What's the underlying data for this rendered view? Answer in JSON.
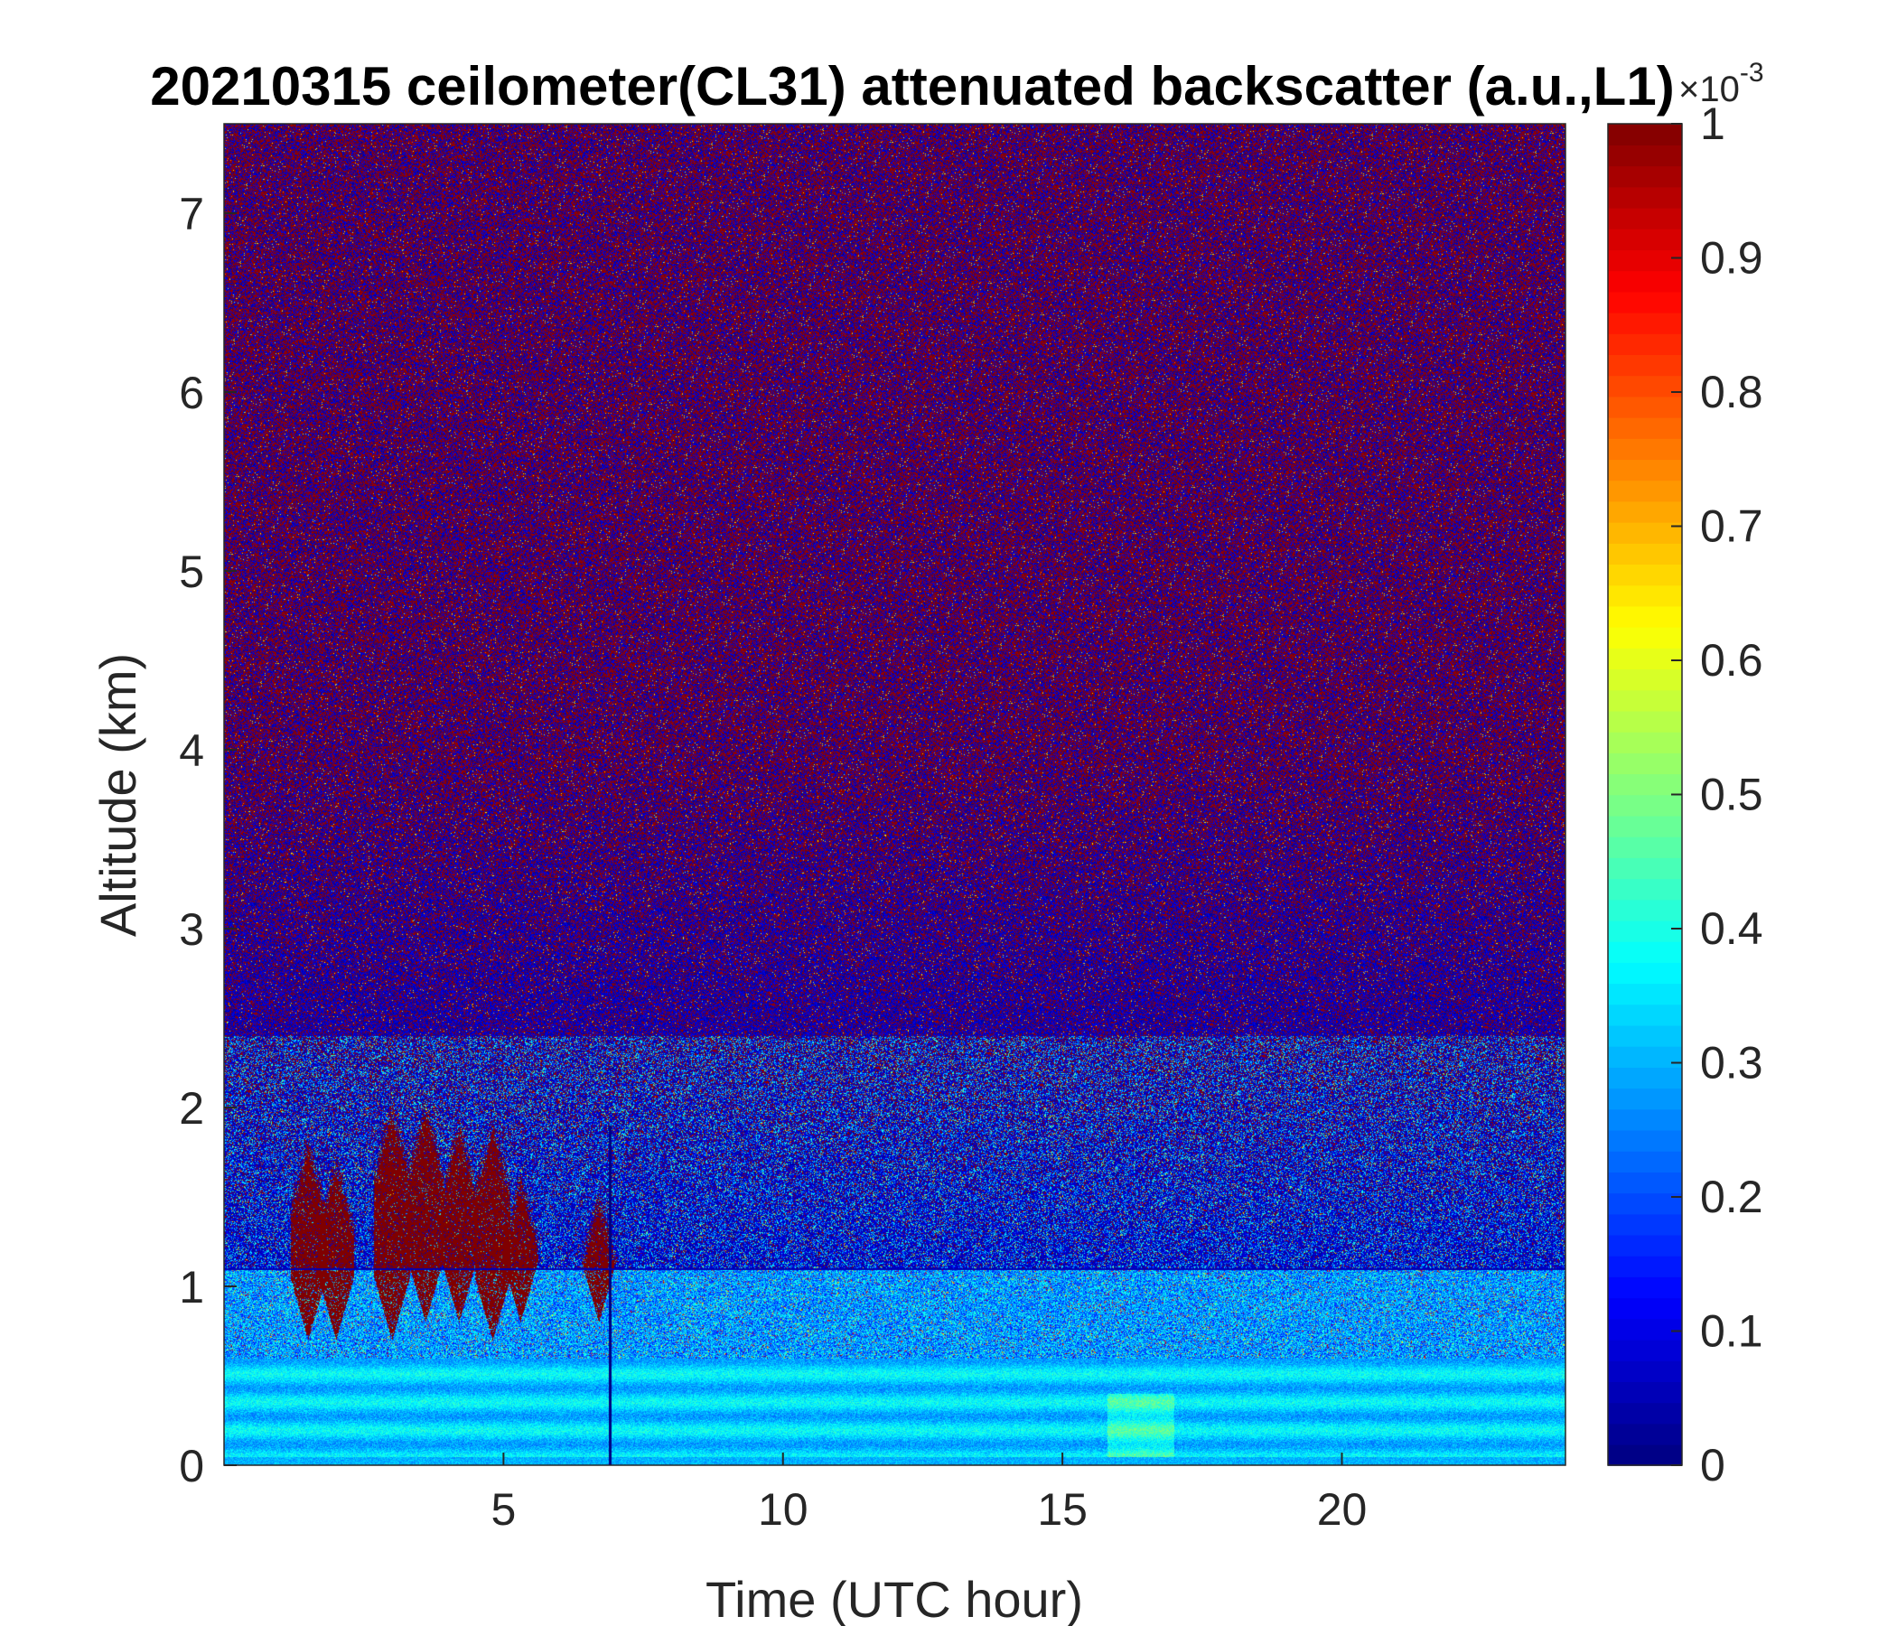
{
  "chart_data": {
    "type": "heatmap",
    "title": "20210315 ceilometer(CL31) attenuated backscatter (a.u.,L1)",
    "xlabel": "Time (UTC hour)",
    "ylabel": "Altitude (km)",
    "xlim": [
      0,
      24
    ],
    "ylim": [
      0,
      7.5
    ],
    "xticks": [
      5,
      10,
      15,
      20
    ],
    "yticks": [
      0,
      1,
      2,
      3,
      4,
      5,
      6,
      7
    ],
    "colorbar": {
      "colormap": "jet",
      "range": [
        0,
        1
      ],
      "ticks": [
        0,
        0.1,
        0.2,
        0.3,
        0.4,
        0.5,
        0.6,
        0.7,
        0.8,
        0.9,
        1
      ],
      "exponent_label": "×10",
      "exponent_power": "-3"
    },
    "features": {
      "near_surface_layer": {
        "altitude_km": [
          0,
          0.6
        ],
        "level": 0.33
      },
      "boundary_layer_top_line_km": 1.1,
      "cloud_cells": [
        {
          "x_hour": 1.5,
          "base_km": 0.7,
          "top_km": 1.8
        },
        {
          "x_hour": 2.0,
          "base_km": 0.7,
          "top_km": 1.7
        },
        {
          "x_hour": 3.0,
          "base_km": 0.7,
          "top_km": 2.0
        },
        {
          "x_hour": 3.6,
          "base_km": 0.8,
          "top_km": 2.0
        },
        {
          "x_hour": 4.2,
          "base_km": 0.8,
          "top_km": 1.9
        },
        {
          "x_hour": 4.8,
          "base_km": 0.7,
          "top_km": 1.9
        },
        {
          "x_hour": 5.3,
          "base_km": 0.8,
          "top_km": 1.6
        },
        {
          "x_hour": 6.7,
          "base_km": 0.8,
          "top_km": 1.5
        }
      ],
      "vertical_gap_hour": 6.9
    }
  }
}
